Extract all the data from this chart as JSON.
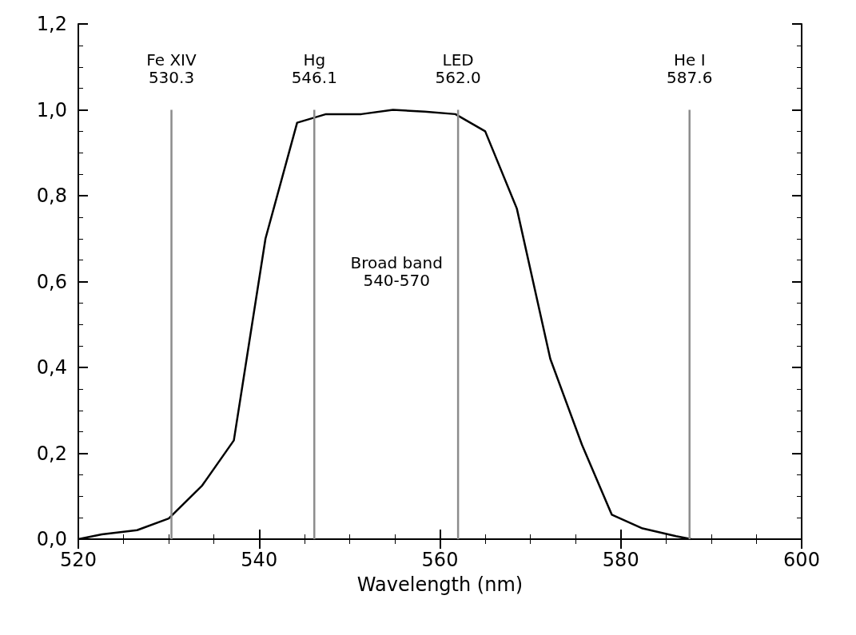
{
  "chart_data": {
    "type": "line",
    "xlabel": "Wavelength (nm)",
    "x": [
      520,
      522.6,
      526.5,
      530,
      533.7,
      537.2,
      540.7,
      544.2,
      547.4,
      551.3,
      554.8,
      558.3,
      561.7,
      565,
      568.5,
      572.2,
      575.7,
      579,
      582.4,
      586.1,
      587.8
    ],
    "series": [
      {
        "color": "#000000",
        "values": [
          0,
          0.011,
          0.021,
          0.048,
          0.125,
          0.23,
          0.7,
          0.97,
          0.99,
          0.99,
          1.0,
          0.996,
          0.99,
          0.95,
          0.77,
          0.42,
          0.22,
          0.057,
          0.025,
          0.007,
          0
        ]
      },
      {
        "color": "#8c8c8c",
        "x": [
          530.3,
          530.3
        ],
        "values": [
          0,
          1
        ]
      },
      {
        "color": "#8c8c8c",
        "x": [
          546.1,
          546.1
        ],
        "values": [
          0,
          1
        ]
      },
      {
        "color": "#8c8c8c",
        "x": [
          562.0,
          562.0
        ],
        "values": [
          0,
          1
        ]
      },
      {
        "color": "#8c8c8c",
        "x": [
          587.6,
          587.6
        ],
        "values": [
          0,
          1
        ]
      }
    ],
    "annotations": [
      {
        "text": "Fe XIV\n530.3",
        "x": 530.3,
        "y": 1.0
      },
      {
        "text": "Hg\n546.1",
        "x": 546.1,
        "y": 1.0
      },
      {
        "text": "LED\n562.0",
        "x": 562.0,
        "y": 1.0
      },
      {
        "text": "He I\n587.6",
        "x": 587.6,
        "y": 1.0
      },
      "Broad band\n540-570"
    ],
    "xlim": [
      520,
      600
    ],
    "xticks": [
      520,
      540,
      560,
      580,
      600
    ],
    "ylim": [
      0,
      1.2
    ],
    "yticks": [
      {
        "value": 0,
        "label": "0,0"
      },
      {
        "value": 0.2,
        "label": "0,2"
      },
      {
        "value": 0.4,
        "label": "0,4"
      },
      {
        "value": 0.6,
        "label": "0,6"
      },
      {
        "value": 0.8,
        "label": "0,8"
      },
      {
        "value": 1.0,
        "label": "1,0"
      },
      {
        "value": 1.2,
        "label": "1,2"
      }
    ],
    "grid": false,
    "marker": "none",
    "line_style": "solid"
  }
}
